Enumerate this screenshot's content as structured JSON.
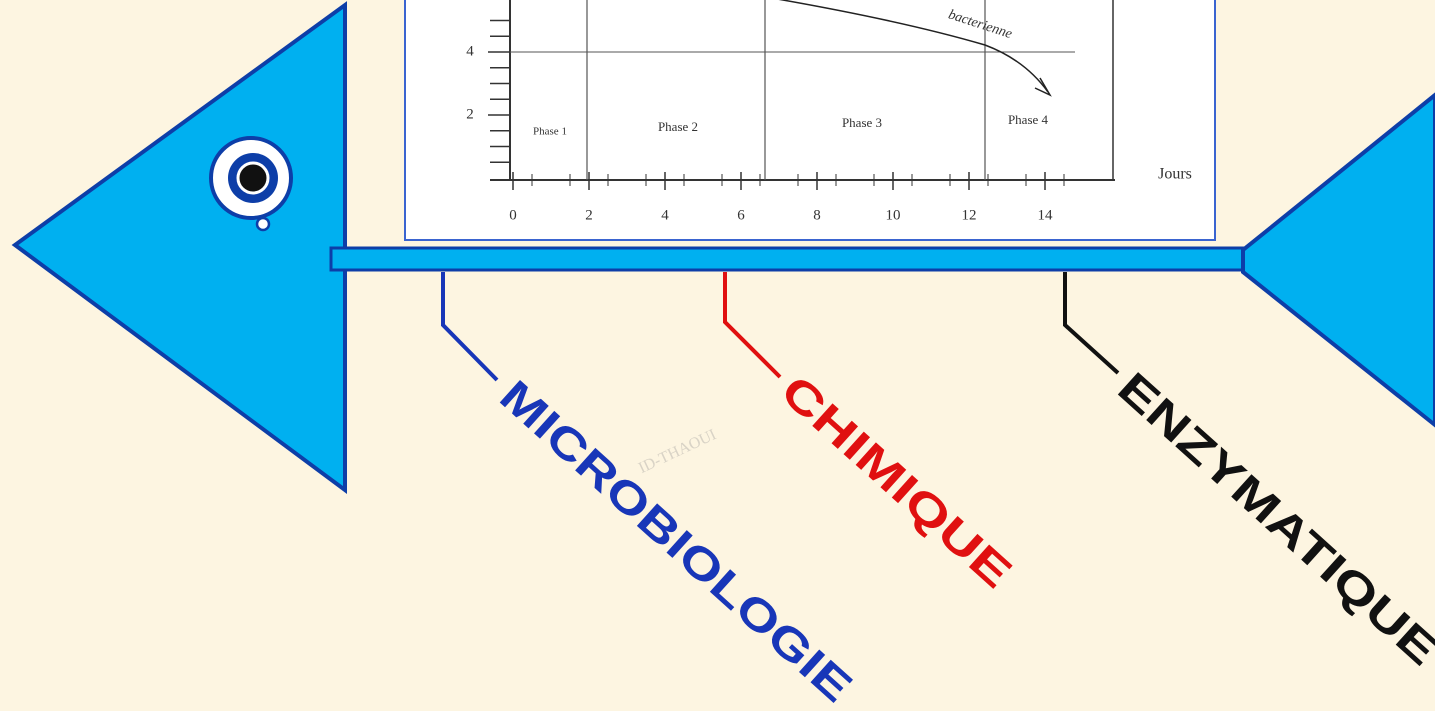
{
  "embedded_chart": {
    "yticks": [
      2,
      4
    ],
    "xticks": [
      0,
      2,
      4,
      6,
      8,
      10,
      12,
      14
    ],
    "xlabel": "Jours",
    "phases": [
      "Phase 1",
      "Phase 2",
      "Phase 3",
      "Phase 4"
    ],
    "curve_label": "bacterienne"
  },
  "watermark": "ID-THAOUI",
  "branches": [
    "MICROBIOLOGIE",
    "CHIMIQUE",
    "ENZYMATIQUE"
  ]
}
